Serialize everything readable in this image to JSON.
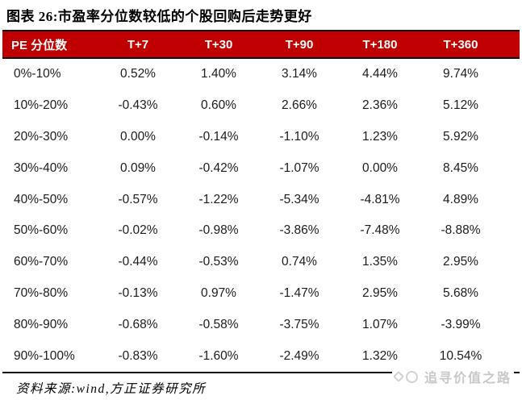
{
  "chart_data": {
    "type": "table",
    "title": "图表 26:市盈率分位数较低的个股回购后走势更好",
    "columns": [
      "PE 分位数",
      "T+7",
      "T+30",
      "T+90",
      "T+180",
      "T+360"
    ],
    "rows": [
      [
        "0%-10%",
        "0.52%",
        "1.40%",
        "3.14%",
        "4.44%",
        "9.74%"
      ],
      [
        "10%-20%",
        "-0.43%",
        "0.60%",
        "2.66%",
        "2.36%",
        "5.12%"
      ],
      [
        "20%-30%",
        "0.00%",
        "-0.14%",
        "-1.10%",
        "1.23%",
        "5.92%"
      ],
      [
        "30%-40%",
        "0.09%",
        "-0.42%",
        "-1.07%",
        "0.00%",
        "8.45%"
      ],
      [
        "40%-50%",
        "-0.57%",
        "-1.22%",
        "-5.34%",
        "-4.81%",
        "4.89%"
      ],
      [
        "50%-60%",
        "-0.02%",
        "-0.98%",
        "-3.86%",
        "-7.48%",
        "-8.88%"
      ],
      [
        "60%-70%",
        "-0.44%",
        "-0.53%",
        "0.74%",
        "1.35%",
        "2.95%"
      ],
      [
        "70%-80%",
        "-0.13%",
        "0.97%",
        "-1.47%",
        "2.95%",
        "5.68%"
      ],
      [
        "80%-90%",
        "-0.68%",
        "-0.58%",
        "-3.75%",
        "1.07%",
        "-3.99%"
      ],
      [
        "90%-100%",
        "-0.83%",
        "-1.60%",
        "-2.49%",
        "1.32%",
        "10.54%"
      ]
    ],
    "layout_hints": {
      "header_style": "solid red bar, white bold text, black rules above and below",
      "first_column_align": "left",
      "value_columns_align": "center",
      "row_separators": "none",
      "bottom_rule": true
    }
  },
  "footer": {
    "source_note": "资料来源:wind,方正证券研究所"
  },
  "watermark": {
    "text": "追寻价值之路",
    "icon": "circle-logo-icon"
  },
  "colors": {
    "header_bg": "#c00000",
    "header_text": "#ffffff",
    "body_text": "#1c1c1c",
    "rule": "#0d0d0d",
    "watermark_gray": "#c8c8c8",
    "background": "#ffffff"
  }
}
